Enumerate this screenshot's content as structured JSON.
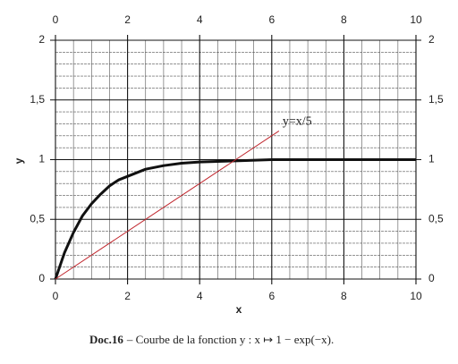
{
  "chart_data": {
    "type": "line",
    "x_label": "x",
    "y_label": "y",
    "caption_label": "Doc.16",
    "caption": "– Courbe de la fonction y : x ↦ 1 − exp(−x).",
    "x": [
      0,
      0.25,
      0.5,
      0.75,
      1,
      1.25,
      1.5,
      1.75,
      2,
      2.5,
      3,
      3.5,
      4,
      5,
      6,
      7,
      8,
      9,
      10
    ],
    "series": [
      {
        "color": "#111111",
        "values": [
          0,
          0.22,
          0.39,
          0.53,
          0.63,
          0.71,
          0.78,
          0.83,
          0.86,
          0.92,
          0.95,
          0.97,
          0.98,
          0.99,
          1,
          1,
          1,
          1,
          1
        ]
      },
      {
        "name": "y=x/5",
        "color": "#c0262d",
        "x": [
          0,
          6.2
        ],
        "values": [
          0,
          1.24
        ]
      }
    ],
    "xlim": [
      0,
      10
    ],
    "ylim": [
      0,
      2
    ],
    "xticks": [
      0,
      2,
      4,
      6,
      8,
      10
    ],
    "yticks": [
      0,
      {
        "value": 0.5,
        "label": "0,5"
      },
      1,
      {
        "value": 1.5,
        "label": "1,5"
      },
      2
    ],
    "minor_xticks": [
      0.5,
      1,
      1.5,
      2.5,
      3,
      3.5,
      4.5,
      5,
      5.5,
      6.5,
      7,
      7.5,
      8.5,
      9,
      9.5
    ],
    "minor_yticks": [
      0.1,
      0.2,
      0.3,
      0.4,
      0.6,
      0.7,
      0.8,
      0.9,
      1.1,
      1.2,
      1.3,
      1.4,
      1.6,
      1.7,
      1.8,
      1.9
    ],
    "grid": true
  }
}
